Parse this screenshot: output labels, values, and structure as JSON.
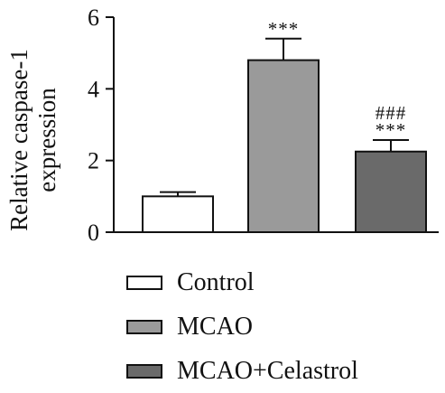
{
  "chart_data": {
    "type": "bar",
    "categories": [
      "Control",
      "MCAO",
      "MCAO+Celastrol"
    ],
    "values": [
      1.0,
      4.8,
      2.25
    ],
    "errors": [
      0.12,
      0.6,
      0.32
    ],
    "colors": [
      "#ffffff",
      "#9a9a9a",
      "#6a6a6a"
    ],
    "significance": [
      [],
      [
        "***"
      ],
      [
        "###",
        "***"
      ]
    ],
    "ylabel_lines": [
      "Relative caspase-1",
      "expression"
    ],
    "ylim": [
      0,
      6
    ],
    "yticks": [
      0,
      2,
      4,
      6
    ],
    "grid": false,
    "legend_position": "bottom"
  }
}
